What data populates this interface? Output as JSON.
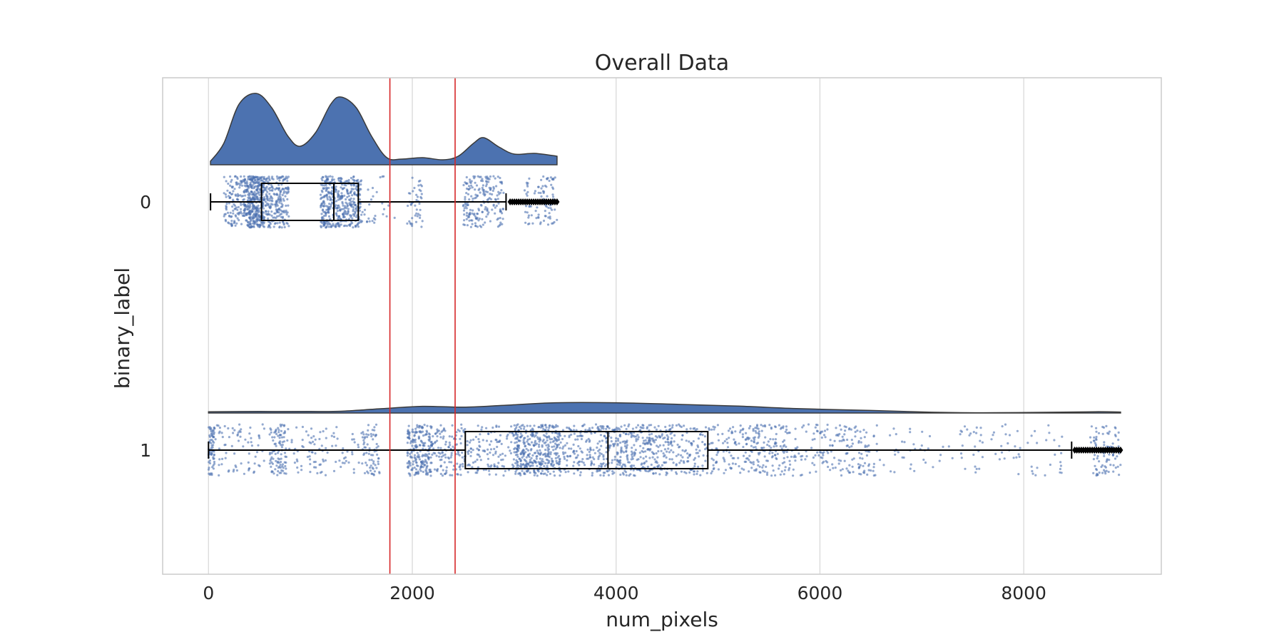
{
  "chart_data": {
    "type": "raincloud",
    "title": "Overall Data",
    "xlabel": "num_pixels",
    "ylabel": "binary_label",
    "orientation": "horizontal",
    "xlim": [
      -450,
      9350
    ],
    "xticks": [
      0,
      2000,
      4000,
      6000,
      8000
    ],
    "grid": true,
    "colors": {
      "fill": "#4c72b0",
      "points": "#4c72b0",
      "box": "#000000",
      "reference_lines": "#d62728",
      "grid": "#d9d9d9"
    },
    "reference_lines": [
      1780,
      2420
    ],
    "categories": [
      "0",
      "1"
    ],
    "groups": [
      {
        "label": "0",
        "range": [
          20,
          3420
        ],
        "box": {
          "min": 20,
          "q1": 520,
          "median": 1230,
          "q3": 1470,
          "max": 2920
        },
        "outliers_range": [
          2960,
          3420
        ],
        "density": [
          [
            20,
            0.05
          ],
          [
            150,
            0.3
          ],
          [
            300,
            0.85
          ],
          [
            470,
            1.0
          ],
          [
            620,
            0.8
          ],
          [
            780,
            0.4
          ],
          [
            900,
            0.26
          ],
          [
            1050,
            0.45
          ],
          [
            1200,
            0.85
          ],
          [
            1300,
            0.95
          ],
          [
            1450,
            0.8
          ],
          [
            1600,
            0.4
          ],
          [
            1750,
            0.1
          ],
          [
            1900,
            0.08
          ],
          [
            2100,
            0.1
          ],
          [
            2300,
            0.07
          ],
          [
            2450,
            0.12
          ],
          [
            2600,
            0.3
          ],
          [
            2700,
            0.38
          ],
          [
            2850,
            0.25
          ],
          [
            3000,
            0.15
          ],
          [
            3200,
            0.16
          ],
          [
            3420,
            0.12
          ]
        ],
        "point_clusters": [
          {
            "range": [
              150,
              350
            ],
            "share": 0.08
          },
          {
            "range": [
              350,
              550
            ],
            "share": 0.26
          },
          {
            "range": [
              550,
              790
            ],
            "share": 0.14
          },
          {
            "range": [
              1100,
              1250
            ],
            "share": 0.12
          },
          {
            "range": [
              1250,
              1500
            ],
            "share": 0.16
          },
          {
            "range": [
              1500,
              1850
            ],
            "share": 0.02
          },
          {
            "range": [
              1950,
              2100
            ],
            "share": 0.03
          },
          {
            "range": [
              2500,
              2900
            ],
            "share": 0.13
          },
          {
            "range": [
              3100,
              3420
            ],
            "share": 0.06
          }
        ]
      },
      {
        "label": "1",
        "range": [
          0,
          8950
        ],
        "box": {
          "min": 0,
          "q1": 2520,
          "median": 3920,
          "q3": 4900,
          "max": 8470
        },
        "outliers_range": [
          8500,
          8950
        ],
        "density": [
          [
            0,
            0.05
          ],
          [
            500,
            0.06
          ],
          [
            1000,
            0.06
          ],
          [
            1300,
            0.07
          ],
          [
            1700,
            0.17
          ],
          [
            2100,
            0.26
          ],
          [
            2500,
            0.23
          ],
          [
            2900,
            0.3
          ],
          [
            3400,
            0.4
          ],
          [
            4000,
            0.4
          ],
          [
            4600,
            0.34
          ],
          [
            5200,
            0.27
          ],
          [
            5800,
            0.17
          ],
          [
            6500,
            0.1
          ],
          [
            7100,
            0.03
          ],
          [
            7600,
            0.01
          ],
          [
            8300,
            0.03
          ],
          [
            8700,
            0.05
          ],
          [
            8950,
            0.04
          ]
        ],
        "point_clusters": [
          {
            "range": [
              0,
              60
            ],
            "share": 0.03
          },
          {
            "range": [
              60,
              550
            ],
            "share": 0.03
          },
          {
            "range": [
              600,
              760
            ],
            "share": 0.04
          },
          {
            "range": [
              760,
              1500
            ],
            "share": 0.04
          },
          {
            "range": [
              1500,
              1680
            ],
            "share": 0.03
          },
          {
            "range": [
              1950,
              2200
            ],
            "share": 0.09
          },
          {
            "range": [
              2200,
              2520
            ],
            "share": 0.05
          },
          {
            "range": [
              2520,
              3000
            ],
            "share": 0.05
          },
          {
            "range": [
              3000,
              3450
            ],
            "share": 0.16
          },
          {
            "range": [
              3450,
              3900
            ],
            "share": 0.07
          },
          {
            "range": [
              3900,
              4400
            ],
            "share": 0.11
          },
          {
            "range": [
              4400,
              4900
            ],
            "share": 0.07
          },
          {
            "range": [
              4900,
              5300
            ],
            "share": 0.04
          },
          {
            "range": [
              5300,
              5700
            ],
            "share": 0.06
          },
          {
            "range": [
              5700,
              6100
            ],
            "share": 0.03
          },
          {
            "range": [
              6100,
              6500
            ],
            "share": 0.04
          },
          {
            "range": [
              6500,
              8400
            ],
            "share": 0.05
          },
          {
            "range": [
              8650,
              8950
            ],
            "share": 0.04
          }
        ]
      }
    ]
  }
}
